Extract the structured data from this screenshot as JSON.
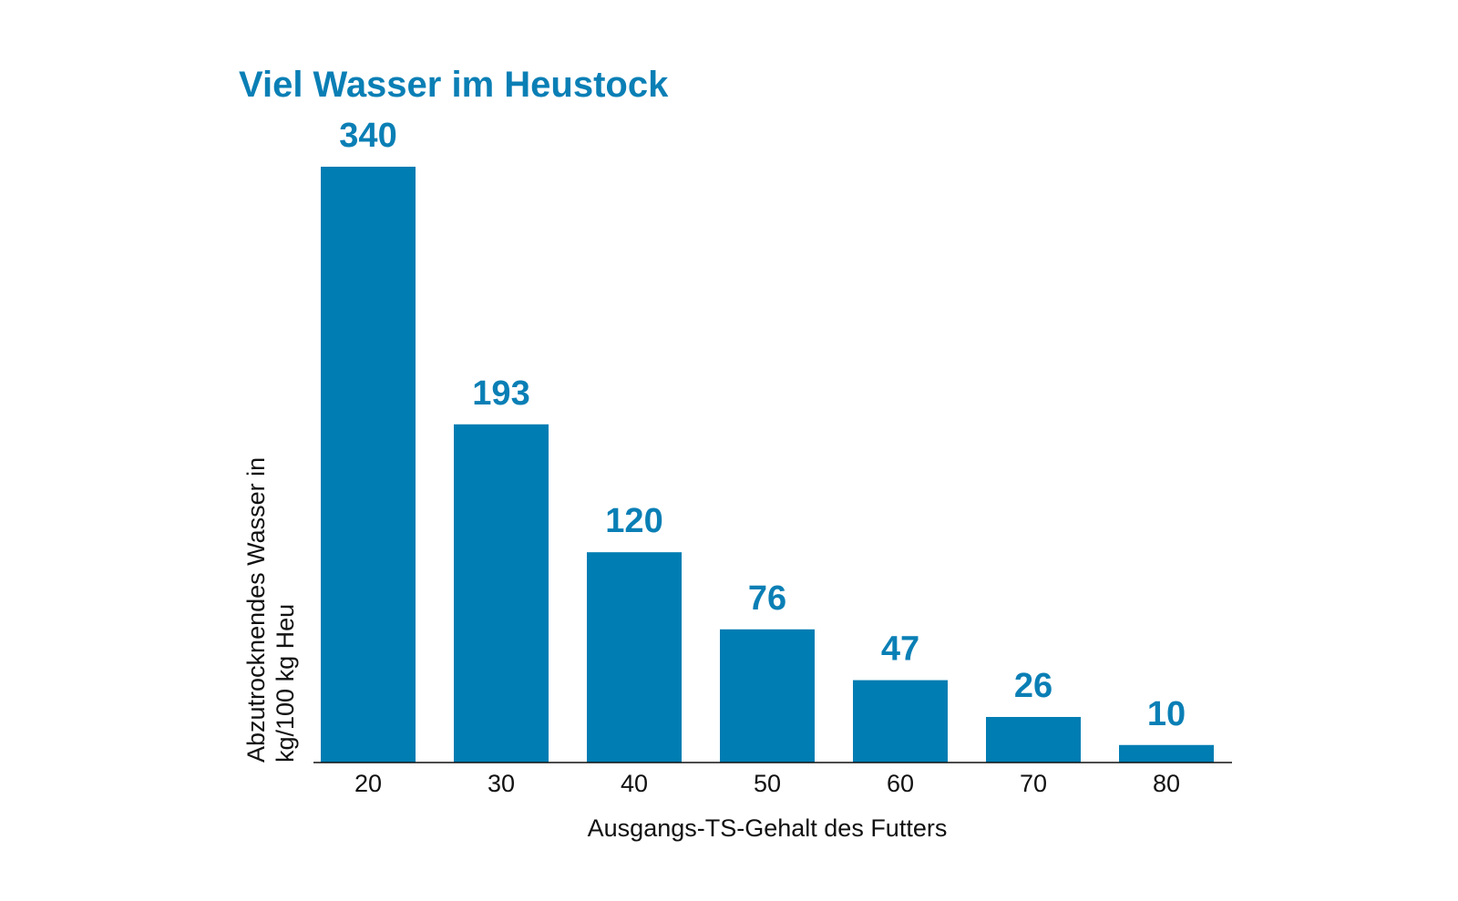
{
  "chart_data": {
    "type": "bar",
    "title": "Viel Wasser im Heustock",
    "categories": [
      "20",
      "30",
      "40",
      "50",
      "60",
      "70",
      "80"
    ],
    "values": [
      340,
      193,
      120,
      76,
      47,
      26,
      10
    ],
    "xlabel": "Ausgangs-TS-Gehalt des Futters",
    "ylabel_lines": [
      "Abzutrocknendes Wasser in",
      "kg/100 kg Heu"
    ],
    "ylim": [
      0,
      340
    ],
    "grid": false,
    "legend": "none",
    "colors": {
      "bar": "#007db3",
      "value_label": "#0a7fb5",
      "title": "#0a7fb5",
      "axis": "#111111"
    }
  }
}
